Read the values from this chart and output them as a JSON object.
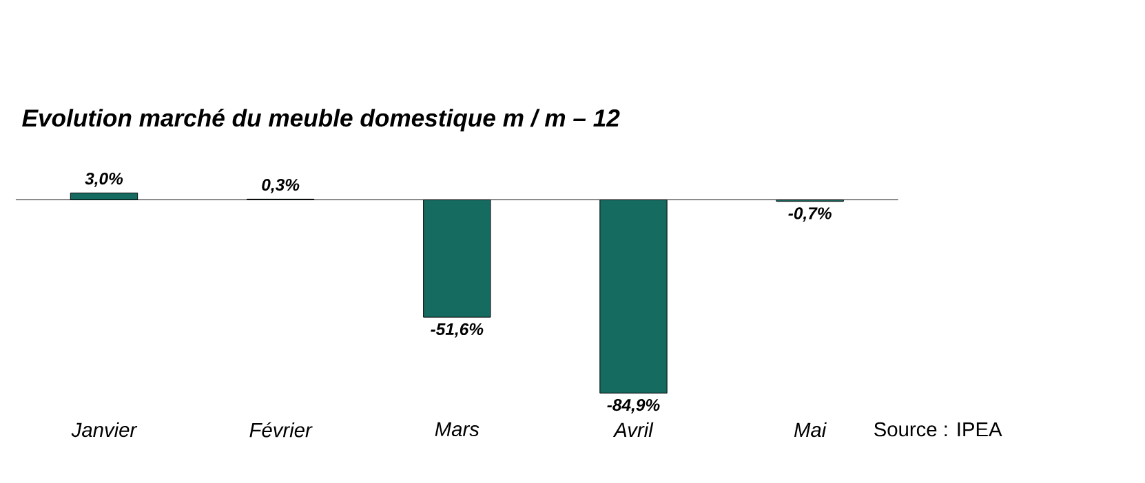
{
  "chart_data": {
    "type": "bar",
    "title": "Evolution marché du meuble domestique m / m – 12",
    "categories": [
      "Janvier",
      "Février",
      "Mars",
      "Avril",
      "Mai"
    ],
    "values": [
      3.0,
      0.3,
      -51.6,
      -84.9,
      -0.7
    ],
    "value_labels": [
      "3,0%",
      "0,3%",
      "-51,6%",
      "-84,9%",
      "-0,7%"
    ],
    "color": "#166b61",
    "tick_labels": "x",
    "annotations": [
      "Source : IPEA"
    ]
  }
}
